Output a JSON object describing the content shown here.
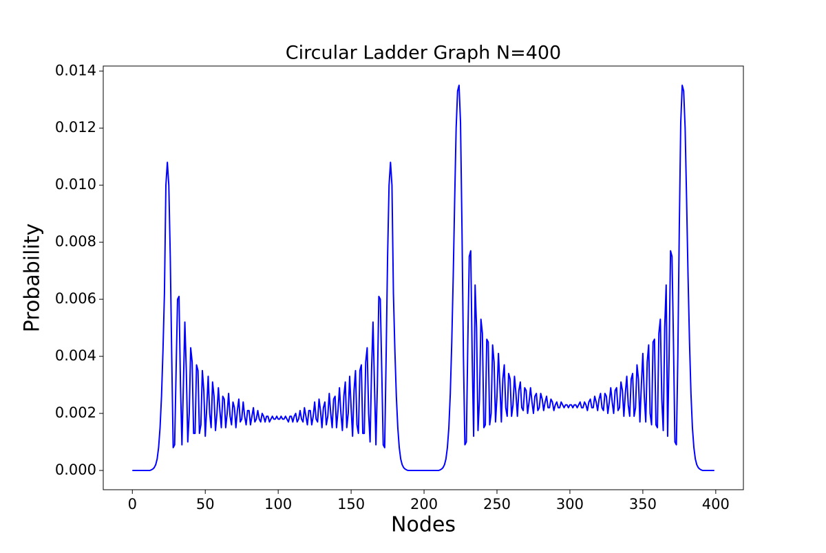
{
  "chart_data": {
    "type": "line",
    "title": "Circular Ladder Graph N=400",
    "xlabel": "Nodes",
    "ylabel": "Probability",
    "color": "#0000ff",
    "xlim": [
      -19.95,
      418.95
    ],
    "ylim": [
      -0.000675,
      0.014175
    ],
    "xticks": [
      0,
      50,
      100,
      150,
      200,
      250,
      300,
      350,
      400
    ],
    "yticks": [
      {
        "value": 0,
        "label": "0.000"
      },
      {
        "value": 0.002,
        "label": "0.002"
      },
      {
        "value": 0.004,
        "label": "0.004"
      },
      {
        "value": 0.006,
        "label": "0.006"
      },
      {
        "value": 0.008,
        "label": "0.008"
      },
      {
        "value": 0.01,
        "label": "0.010"
      },
      {
        "value": 0.012,
        "label": "0.012"
      },
      {
        "value": 0.014,
        "label": "0.014"
      }
    ],
    "x": [
      0,
      1,
      2,
      3,
      4,
      5,
      6,
      7,
      8,
      9,
      10,
      11,
      12,
      13,
      14,
      15,
      16,
      17,
      18,
      19,
      20,
      21,
      22,
      23,
      24,
      25,
      26,
      27,
      28,
      29,
      30,
      31,
      32,
      33,
      34,
      35,
      36,
      37,
      38,
      39,
      40,
      41,
      42,
      43,
      44,
      45,
      46,
      47,
      48,
      49,
      50,
      51,
      52,
      53,
      54,
      55,
      56,
      57,
      58,
      59,
      60,
      61,
      62,
      63,
      64,
      65,
      66,
      67,
      68,
      69,
      70,
      71,
      72,
      73,
      74,
      75,
      76,
      77,
      78,
      79,
      80,
      81,
      82,
      83,
      84,
      85,
      86,
      87,
      88,
      89,
      90,
      91,
      92,
      93,
      94,
      95,
      96,
      97,
      98,
      99,
      100,
      101,
      102,
      103,
      104,
      105,
      106,
      107,
      108,
      109,
      110,
      111,
      112,
      113,
      114,
      115,
      116,
      117,
      118,
      119,
      120,
      121,
      122,
      123,
      124,
      125,
      126,
      127,
      128,
      129,
      130,
      131,
      132,
      133,
      134,
      135,
      136,
      137,
      138,
      139,
      140,
      141,
      142,
      143,
      144,
      145,
      146,
      147,
      148,
      149,
      150,
      151,
      152,
      153,
      154,
      155,
      156,
      157,
      158,
      159,
      160,
      161,
      162,
      163,
      164,
      165,
      166,
      167,
      168,
      169,
      170,
      171,
      172,
      173,
      174,
      175,
      176,
      177,
      178,
      179,
      180,
      181,
      182,
      183,
      184,
      185,
      186,
      187,
      188,
      189,
      190,
      191,
      192,
      193,
      194,
      195,
      196,
      197,
      198,
      199,
      200,
      201,
      202,
      203,
      204,
      205,
      206,
      207,
      208,
      209,
      210,
      211,
      212,
      213,
      214,
      215,
      216,
      217,
      218,
      219,
      220,
      221,
      222,
      223,
      224,
      225,
      226,
      227,
      228,
      229,
      230,
      231,
      232,
      233,
      234,
      235,
      236,
      237,
      238,
      239,
      240,
      241,
      242,
      243,
      244,
      245,
      246,
      247,
      248,
      249,
      250,
      251,
      252,
      253,
      254,
      255,
      256,
      257,
      258,
      259,
      260,
      261,
      262,
      263,
      264,
      265,
      266,
      267,
      268,
      269,
      270,
      271,
      272,
      273,
      274,
      275,
      276,
      277,
      278,
      279,
      280,
      281,
      282,
      283,
      284,
      285,
      286,
      287,
      288,
      289,
      290,
      291,
      292,
      293,
      294,
      295,
      296,
      297,
      298,
      299,
      300,
      301,
      302,
      303,
      304,
      305,
      306,
      307,
      308,
      309,
      310,
      311,
      312,
      313,
      314,
      315,
      316,
      317,
      318,
      319,
      320,
      321,
      322,
      323,
      324,
      325,
      326,
      327,
      328,
      329,
      330,
      331,
      332,
      333,
      334,
      335,
      336,
      337,
      338,
      339,
      340,
      341,
      342,
      343,
      344,
      345,
      346,
      347,
      348,
      349,
      350,
      351,
      352,
      353,
      354,
      355,
      356,
      357,
      358,
      359,
      360,
      361,
      362,
      363,
      364,
      365,
      366,
      367,
      368,
      369,
      370,
      371,
      372,
      373,
      374,
      375,
      376,
      377,
      378,
      379,
      380,
      381,
      382,
      383,
      384,
      385,
      386,
      387,
      388,
      389,
      390,
      391,
      392,
      393,
      394,
      395,
      396,
      397,
      398,
      399
    ],
    "values": [
      0,
      0,
      0,
      0,
      0,
      0,
      0,
      0,
      0,
      0,
      0,
      0,
      0,
      2e-05,
      5e-05,
      0.0001,
      0.0002,
      0.0004,
      0.0008,
      0.0015,
      0.0026,
      0.0042,
      0.0062,
      0.01,
      0.0108,
      0.01,
      0.0075,
      0.004,
      0.0008,
      0.0009,
      0.0035,
      0.006,
      0.0061,
      0.003,
      0.0009,
      0.003,
      0.0052,
      0.0035,
      0.001,
      0.002,
      0.0043,
      0.0038,
      0.0013,
      0.0013,
      0.0037,
      0.0035,
      0.0013,
      0.0016,
      0.0035,
      0.0028,
      0.0012,
      0.0022,
      0.0033,
      0.002,
      0.0015,
      0.0031,
      0.0026,
      0.0014,
      0.002,
      0.0029,
      0.0021,
      0.0015,
      0.0026,
      0.0025,
      0.0015,
      0.002,
      0.0027,
      0.0019,
      0.0016,
      0.0024,
      0.0022,
      0.0015,
      0.0021,
      0.0025,
      0.0017,
      0.0018,
      0.0024,
      0.0019,
      0.0016,
      0.0021,
      0.0021,
      0.0016,
      0.0019,
      0.0022,
      0.0017,
      0.0018,
      0.0021,
      0.0018,
      0.0017,
      0.002,
      0.0019,
      0.0017,
      0.0019,
      0.0019,
      0.0017,
      0.0018,
      0.0019,
      0.0018,
      0.0018,
      0.0019,
      0.0018,
      0.0018,
      0.0019,
      0.0018,
      0.0018,
      0.0019,
      0.0018,
      0.0017,
      0.0019,
      0.0019,
      0.0017,
      0.0019,
      0.002,
      0.0017,
      0.0018,
      0.0021,
      0.0018,
      0.0017,
      0.0022,
      0.0019,
      0.0016,
      0.0021,
      0.0021,
      0.0016,
      0.0019,
      0.0024,
      0.0018,
      0.0017,
      0.0025,
      0.0021,
      0.0015,
      0.0022,
      0.0024,
      0.0016,
      0.0019,
      0.0027,
      0.002,
      0.0015,
      0.0025,
      0.0026,
      0.0015,
      0.0021,
      0.0029,
      0.002,
      0.0014,
      0.0026,
      0.0031,
      0.0015,
      0.002,
      0.0033,
      0.0022,
      0.0012,
      0.0028,
      0.0035,
      0.0016,
      0.0013,
      0.0035,
      0.0037,
      0.0013,
      0.0013,
      0.0038,
      0.0043,
      0.002,
      0.001,
      0.0035,
      0.0052,
      0.003,
      0.0009,
      0.003,
      0.0061,
      0.006,
      0.0035,
      0.0009,
      0.0008,
      0.004,
      0.0075,
      0.01,
      0.0108,
      0.01,
      0.0062,
      0.0042,
      0.0026,
      0.0015,
      0.0008,
      0.0004,
      0.0002,
      0.0001,
      5e-05,
      2e-05,
      0,
      0,
      0,
      0,
      0,
      0,
      0,
      0,
      0,
      0,
      0,
      0,
      0,
      0,
      0,
      0,
      0,
      0,
      0,
      0,
      0,
      0,
      2e-05,
      5e-05,
      0.0001,
      0.0002,
      0.0004,
      0.0008,
      0.0015,
      0.0027,
      0.0045,
      0.0068,
      0.0095,
      0.012,
      0.0133,
      0.0135,
      0.0122,
      0.0085,
      0.004,
      0.0009,
      0.001,
      0.0045,
      0.0075,
      0.0077,
      0.004,
      0.0012,
      0.0065,
      0.005,
      0.0014,
      0.0025,
      0.0053,
      0.0048,
      0.0015,
      0.0016,
      0.0046,
      0.0045,
      0.0016,
      0.002,
      0.0044,
      0.0038,
      0.0017,
      0.0026,
      0.0041,
      0.003,
      0.0017,
      0.0032,
      0.0037,
      0.0022,
      0.0019,
      0.0034,
      0.0032,
      0.0019,
      0.0023,
      0.0033,
      0.0027,
      0.0019,
      0.0028,
      0.0031,
      0.0022,
      0.0021,
      0.0029,
      0.0028,
      0.002,
      0.0024,
      0.0029,
      0.0024,
      0.002,
      0.0026,
      0.0027,
      0.0021,
      0.0022,
      0.0027,
      0.0025,
      0.0021,
      0.0024,
      0.0026,
      0.0022,
      0.0022,
      0.0025,
      0.0024,
      0.0021,
      0.0023,
      0.0024,
      0.0022,
      0.0022,
      0.0024,
      0.0023,
      0.0022,
      0.0023,
      0.0023,
      0.0022,
      0.0023,
      0.0023,
      0.0022,
      0.0023,
      0.0023,
      0.0022,
      0.0023,
      0.0024,
      0.0022,
      0.0022,
      0.0024,
      0.0023,
      0.0021,
      0.0024,
      0.0025,
      0.0022,
      0.0022,
      0.0026,
      0.0024,
      0.0021,
      0.0025,
      0.0027,
      0.0022,
      0.0021,
      0.0027,
      0.0026,
      0.002,
      0.0024,
      0.0029,
      0.0024,
      0.002,
      0.0028,
      0.0029,
      0.0021,
      0.0022,
      0.0031,
      0.0028,
      0.0019,
      0.0027,
      0.0033,
      0.0023,
      0.0019,
      0.0032,
      0.0034,
      0.0019,
      0.0022,
      0.0037,
      0.0032,
      0.0017,
      0.003,
      0.0041,
      0.0026,
      0.0017,
      0.0038,
      0.0044,
      0.002,
      0.0016,
      0.0045,
      0.0046,
      0.0016,
      0.0015,
      0.0048,
      0.0053,
      0.0025,
      0.0014,
      0.005,
      0.0065,
      0.0012,
      0.004,
      0.0077,
      0.0075,
      0.0045,
      0.001,
      0.0009,
      0.004,
      0.0085,
      0.0122,
      0.0135,
      0.0133,
      0.012,
      0.0095,
      0.0068,
      0.0045,
      0.0027,
      0.0015,
      0.0008,
      0.0004,
      0.0002,
      0.0001,
      5e-05,
      2e-05,
      0,
      0,
      0,
      0,
      0,
      0,
      0,
      0,
      0
    ]
  }
}
